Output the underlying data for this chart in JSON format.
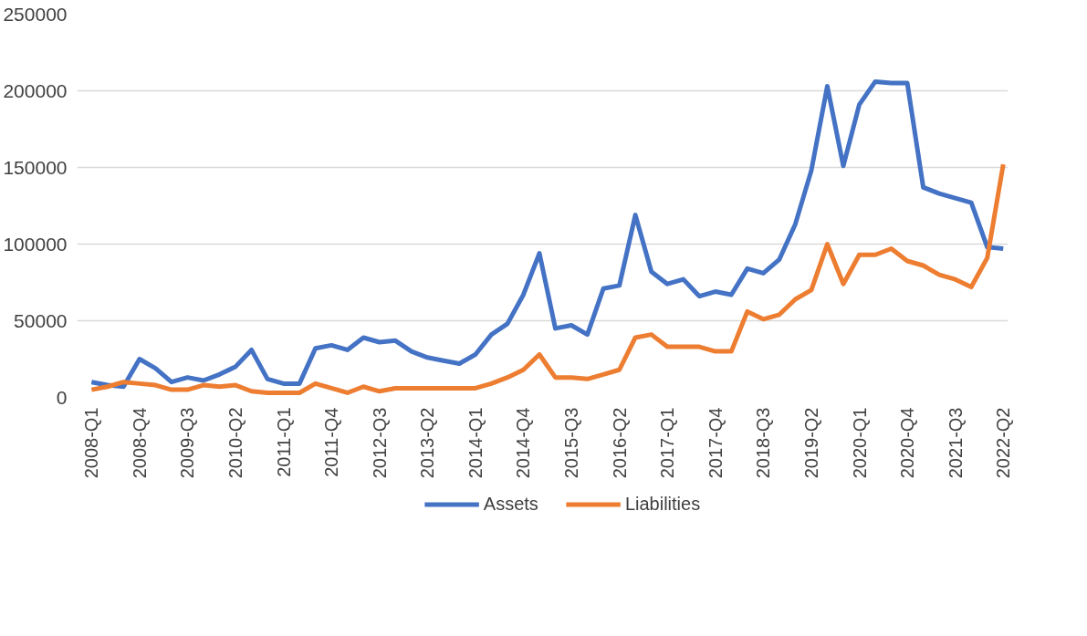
{
  "chart_data": {
    "type": "line",
    "categories": [
      "2008-Q1",
      null,
      null,
      "2008-Q4",
      null,
      null,
      "2009-Q3",
      null,
      null,
      "2010-Q2",
      null,
      null,
      "2011-Q1",
      null,
      null,
      "2011-Q4",
      null,
      null,
      "2012-Q3",
      null,
      null,
      "2013-Q2",
      null,
      null,
      "2014-Q1",
      null,
      null,
      "2014-Q4",
      null,
      null,
      "2015-Q3",
      null,
      null,
      "2016-Q2",
      null,
      null,
      "2017-Q1",
      null,
      null,
      "2017-Q4",
      null,
      null,
      "2018-Q3",
      null,
      null,
      "2019-Q2",
      null,
      null,
      "2020-Q1",
      null,
      null,
      "2020-Q4",
      null,
      null,
      "2021-Q3",
      null,
      null,
      "2022-Q2"
    ],
    "series": [
      {
        "name": "Assets",
        "color": "#4472c4",
        "values": [
          10000,
          8000,
          7000,
          25000,
          19000,
          10000,
          13000,
          11000,
          15000,
          20000,
          31000,
          12000,
          9000,
          9000,
          32000,
          34000,
          31000,
          39000,
          36000,
          37000,
          30000,
          26000,
          24000,
          22000,
          28000,
          41000,
          48000,
          67000,
          94000,
          45000,
          47000,
          41000,
          71000,
          73000,
          119000,
          82000,
          74000,
          77000,
          66000,
          69000,
          67000,
          84000,
          81000,
          90000,
          113000,
          148000,
          203000,
          151000,
          191000,
          206000,
          205000,
          205000,
          137000,
          133000,
          130000,
          127000,
          98000,
          97000
        ]
      },
      {
        "name": "Liabilities",
        "color": "#ed7d31",
        "values": [
          5000,
          7000,
          10000,
          9000,
          8000,
          5000,
          5000,
          8000,
          7000,
          8000,
          4000,
          3000,
          3000,
          3000,
          9000,
          6000,
          3000,
          7000,
          4000,
          6000,
          6000,
          6000,
          6000,
          6000,
          6000,
          9000,
          13000,
          18000,
          28000,
          13000,
          13000,
          12000,
          15000,
          18000,
          39000,
          41000,
          33000,
          33000,
          33000,
          30000,
          30000,
          56000,
          51000,
          54000,
          64000,
          70000,
          100000,
          74000,
          93000,
          93000,
          97000,
          89000,
          86000,
          80000,
          77000,
          72000,
          91000,
          152000
        ]
      }
    ],
    "ylim": [
      0,
      250000
    ],
    "yticks": [
      0,
      50000,
      100000,
      150000,
      200000,
      250000
    ],
    "grid": "y",
    "legend": "bottom",
    "line_style": "solid",
    "marker": "none"
  }
}
